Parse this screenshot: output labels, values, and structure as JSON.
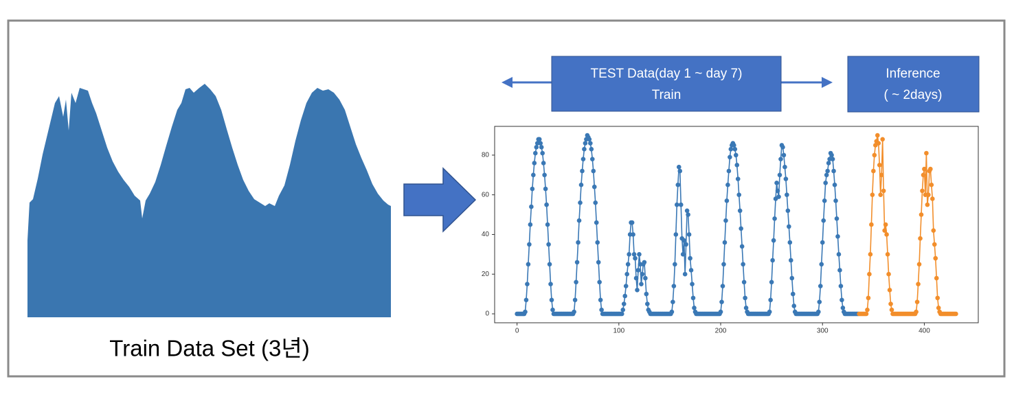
{
  "diagram": {
    "caption": "Train Data Set (3년)",
    "test_box": {
      "line1": "TEST Data(day 1 ~ day 7)",
      "line2": "Train"
    },
    "inference_box": {
      "line1": "Inference",
      "line2": "( ~ 2days)"
    }
  },
  "chart_data": {
    "type": "line",
    "xlim": [
      -22,
      453
    ],
    "ylim": [
      -4.5,
      94.5
    ],
    "xticks": [
      0,
      100,
      200,
      300,
      400
    ],
    "yticks": [
      0,
      20,
      40,
      60,
      80
    ],
    "series": [
      {
        "color": "#3a78b5",
        "x": [
          0,
          1,
          2,
          3,
          4,
          5,
          6,
          7,
          8,
          9,
          10,
          11,
          12,
          13,
          14,
          15,
          16,
          17,
          18,
          19,
          20,
          21,
          22,
          23,
          24,
          25,
          26,
          27,
          28,
          29,
          30,
          31,
          32,
          33,
          34,
          35,
          36,
          37,
          38,
          39,
          40,
          41,
          42,
          43,
          44,
          45,
          46,
          47,
          48,
          49,
          50,
          51,
          52,
          53,
          54,
          55,
          56,
          57,
          58,
          59,
          60,
          61,
          62,
          63,
          64,
          65,
          66,
          67,
          68,
          69,
          70,
          71,
          72,
          73,
          74,
          75,
          76,
          77,
          78,
          79,
          80,
          81,
          82,
          83,
          84,
          85,
          86,
          87,
          88,
          89,
          90,
          91,
          92,
          93,
          94,
          95,
          96,
          97,
          98,
          99,
          100,
          101,
          102,
          103,
          104,
          105,
          106,
          107,
          108,
          109,
          110,
          111,
          112,
          113,
          114,
          115,
          116,
          117,
          118,
          119,
          120,
          121,
          122,
          123,
          124,
          125,
          126,
          127,
          128,
          129,
          130,
          131,
          132,
          133,
          134,
          135,
          136,
          137,
          138,
          139,
          140,
          141,
          142,
          143,
          144,
          145,
          146,
          147,
          148,
          149,
          150,
          151,
          152,
          153,
          154,
          155,
          156,
          157,
          158,
          159,
          160,
          161,
          162,
          163,
          164,
          165,
          166,
          167,
          168,
          169,
          170,
          171,
          172,
          173,
          174,
          175,
          176,
          177,
          178,
          179,
          180,
          181,
          182,
          183,
          184,
          185,
          186,
          187,
          188,
          189,
          190,
          191,
          192,
          193,
          194,
          195,
          196,
          197,
          198,
          199,
          200,
          201,
          202,
          203,
          204,
          205,
          206,
          207,
          208,
          209,
          210,
          211,
          212,
          213,
          214,
          215,
          216,
          217,
          218,
          219,
          220,
          221,
          222,
          223,
          224,
          225,
          226,
          227,
          228,
          229,
          230,
          231,
          232,
          233,
          234,
          235,
          236,
          237,
          238,
          239,
          240,
          241,
          242,
          243,
          244,
          245,
          246,
          247,
          248,
          249,
          250,
          251,
          252,
          253,
          254,
          255,
          256,
          257,
          258,
          259,
          260,
          261,
          262,
          263,
          264,
          265,
          266,
          267,
          268,
          269,
          270,
          271,
          272,
          273,
          274,
          275,
          276,
          277,
          278,
          279,
          280,
          281,
          282,
          283,
          284,
          285,
          286,
          287,
          288,
          289,
          290,
          291,
          292,
          293,
          294,
          295,
          296,
          297,
          298,
          299,
          300,
          301,
          302,
          303,
          304,
          305,
          306,
          307,
          308,
          309,
          310,
          311,
          312,
          313,
          314,
          315,
          316,
          317,
          318,
          319,
          320,
          321,
          322,
          323,
          324,
          325,
          326,
          327,
          328,
          329,
          330,
          331,
          332,
          333,
          334,
          335
        ],
        "values": [
          0,
          0,
          0,
          0,
          0,
          0,
          0,
          0,
          1,
          7,
          15,
          25,
          35,
          45,
          54,
          63,
          70,
          76,
          81,
          84,
          86,
          88,
          88,
          86,
          84,
          81,
          76,
          70,
          63,
          55,
          45,
          35,
          25,
          15,
          7,
          2,
          0,
          0,
          0,
          0,
          0,
          0,
          0,
          0,
          0,
          0,
          0,
          0,
          0,
          0,
          0,
          0,
          0,
          0,
          0,
          0,
          1,
          7,
          16,
          26,
          36,
          47,
          56,
          65,
          72,
          78,
          83,
          86,
          88,
          90,
          89,
          88,
          86,
          83,
          78,
          72,
          64,
          56,
          46,
          36,
          26,
          16,
          7,
          2,
          0,
          0,
          0,
          0,
          0,
          0,
          0,
          0,
          0,
          0,
          0,
          0,
          0,
          0,
          0,
          0,
          0,
          0,
          0,
          0,
          2,
          5,
          9,
          14,
          20,
          25,
          30,
          40,
          46,
          46,
          40,
          30,
          28,
          18,
          12,
          22,
          30,
          25,
          15,
          20,
          25,
          26,
          18,
          10,
          5,
          2,
          1,
          0,
          0,
          0,
          0,
          0,
          0,
          0,
          0,
          0,
          0,
          0,
          0,
          0,
          0,
          0,
          0,
          0,
          0,
          0,
          0,
          0,
          1,
          6,
          14,
          25,
          40,
          55,
          65,
          74,
          72,
          55,
          38,
          30,
          37,
          20,
          35,
          52,
          50,
          40,
          28,
          22,
          15,
          8,
          3,
          1,
          0,
          0,
          0,
          0,
          0,
          0,
          0,
          0,
          0,
          0,
          0,
          0,
          0,
          0,
          0,
          0,
          0,
          0,
          0,
          0,
          0,
          0,
          0,
          0,
          1,
          6,
          14,
          25,
          36,
          47,
          57,
          65,
          72,
          79,
          83,
          85,
          86,
          85,
          83,
          80,
          75,
          68,
          60,
          52,
          43,
          34,
          25,
          16,
          8,
          3,
          1,
          0,
          0,
          0,
          0,
          0,
          0,
          0,
          0,
          0,
          0,
          0,
          0,
          0,
          0,
          0,
          0,
          0,
          0,
          0,
          0,
          0,
          1,
          7,
          16,
          27,
          37,
          48,
          58,
          66,
          62,
          59,
          70,
          78,
          85,
          84,
          80,
          74,
          68,
          60,
          52,
          44,
          36,
          27,
          18,
          10,
          4,
          1,
          0,
          0,
          0,
          0,
          0,
          0,
          0,
          0,
          0,
          0,
          0,
          0,
          0,
          0,
          0,
          0,
          0,
          0,
          0,
          0,
          0,
          0,
          1,
          6,
          14,
          25,
          36,
          47,
          57,
          66,
          70,
          72,
          76,
          78,
          81,
          80,
          78,
          72,
          65,
          57,
          48,
          39,
          30,
          22,
          14,
          7,
          3,
          1,
          0,
          0,
          0,
          0,
          0,
          0,
          0,
          0,
          0,
          0,
          0,
          0,
          0,
          0
        ]
      },
      {
        "color": "#f28e2b",
        "x": [
          336,
          337,
          338,
          339,
          340,
          341,
          342,
          343,
          344,
          345,
          346,
          347,
          348,
          349,
          350,
          351,
          352,
          353,
          354,
          355,
          356,
          357,
          358,
          359,
          360,
          361,
          362,
          363,
          364,
          365,
          366,
          367,
          368,
          369,
          370,
          371,
          372,
          373,
          374,
          375,
          376,
          377,
          378,
          379,
          380,
          381,
          382,
          383,
          384,
          385,
          386,
          387,
          388,
          389,
          390,
          391,
          392,
          393,
          394,
          395,
          396,
          397,
          398,
          399,
          400,
          401,
          402,
          403,
          404,
          405,
          406,
          407,
          408,
          409,
          410,
          411,
          412,
          413,
          414,
          415,
          416,
          417,
          418,
          419,
          420,
          421,
          422,
          423,
          424,
          425,
          426,
          427,
          428,
          429,
          430,
          431
        ],
        "values": [
          0,
          0,
          0,
          0,
          0,
          0,
          0,
          0,
          2,
          8,
          20,
          30,
          45,
          60,
          72,
          80,
          85,
          87,
          90,
          86,
          75,
          60,
          70,
          88,
          62,
          42,
          45,
          40,
          30,
          20,
          12,
          5,
          2,
          0,
          0,
          0,
          0,
          0,
          0,
          0,
          0,
          0,
          0,
          0,
          0,
          0,
          0,
          0,
          0,
          0,
          0,
          0,
          0,
          0,
          0,
          0,
          1,
          6,
          15,
          25,
          38,
          50,
          62,
          70,
          73,
          60,
          81,
          55,
          60,
          72,
          73,
          65,
          58,
          42,
          35,
          28,
          18,
          8,
          3,
          1,
          0,
          0,
          0,
          0,
          0,
          0,
          0,
          0,
          0,
          0,
          0,
          0,
          0,
          0,
          0,
          0
        ]
      }
    ]
  }
}
